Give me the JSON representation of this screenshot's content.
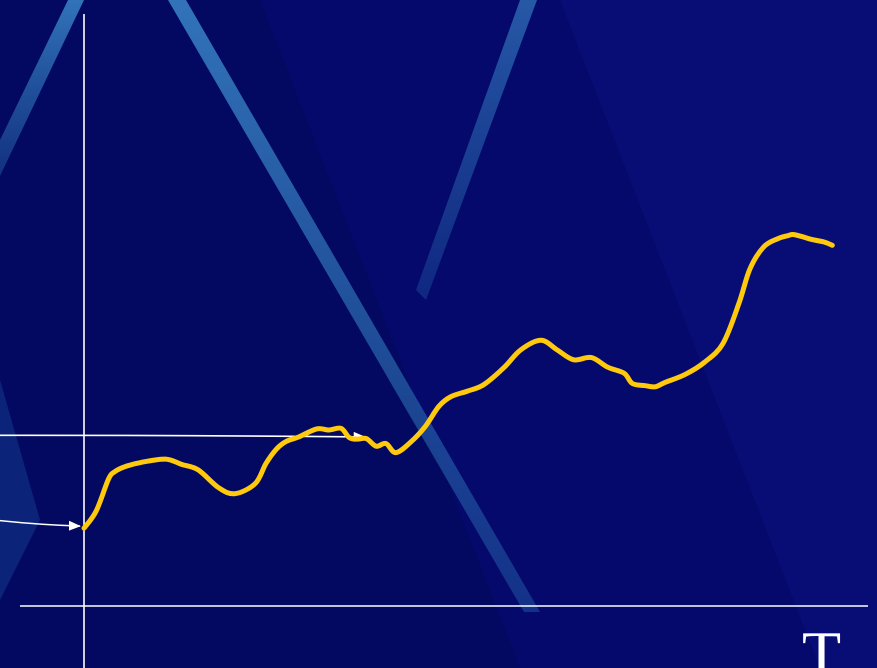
{
  "colors": {
    "background": "#04096b",
    "axis": "#ffffff",
    "series": "#ffc90e",
    "stripe": "#2f7bbd"
  },
  "chart_data": {
    "type": "line",
    "xlabel": "T",
    "ylabel": "",
    "xlim": [
      0,
      100
    ],
    "ylim": [
      0,
      100
    ],
    "grid": false,
    "legend": "none",
    "series": [
      {
        "x": [
          0,
          1.5,
          3,
          3.8,
          5,
          7,
          10,
          12,
          14,
          16.5,
          18.5,
          21,
          22.3,
          23.6,
          24.8,
          26.3,
          28.5,
          30,
          31.5,
          32.5,
          33.5,
          34.6,
          35.8,
          37,
          38.2,
          40,
          41.8,
          43.5,
          45,
          47,
          49,
          51.5,
          53.5,
          56,
          58,
          60,
          62.2,
          64.2,
          66.2,
          67.2,
          68.8,
          70,
          71.2,
          73.7,
          76,
          78.3,
          80.3,
          81.6,
          83.3,
          85,
          86.3,
          86.9,
          88,
          89.1,
          90.7,
          91.7
        ],
        "y": [
          14.4,
          17.6,
          23.5,
          24.9,
          25.8,
          26.6,
          27.2,
          26.2,
          25.2,
          21.9,
          20.8,
          22.7,
          26.4,
          29.1,
          30.5,
          31.3,
          32.8,
          32.6,
          32.9,
          31.2,
          30.9,
          31.0,
          29.6,
          30.1,
          28.4,
          30.3,
          33.2,
          37.0,
          38.8,
          39.8,
          41.0,
          44.2,
          47.4,
          49.2,
          47.4,
          45.6,
          46.0,
          44.2,
          43.1,
          41.2,
          40.8,
          40.6,
          41.4,
          42.9,
          45.1,
          48.6,
          56.2,
          62.4,
          66.5,
          68.0,
          68.6,
          68.8,
          68.4,
          67.9,
          67.4,
          66.8
        ]
      }
    ],
    "annotations": [
      {
        "type": "arrow",
        "from": [
          -16,
          31.6
        ],
        "to": [
          34.4,
          31.3
        ]
      },
      {
        "type": "arrow",
        "from": [
          -16,
          16.9
        ],
        "to": [
          -0.5,
          14.8
        ]
      }
    ]
  }
}
